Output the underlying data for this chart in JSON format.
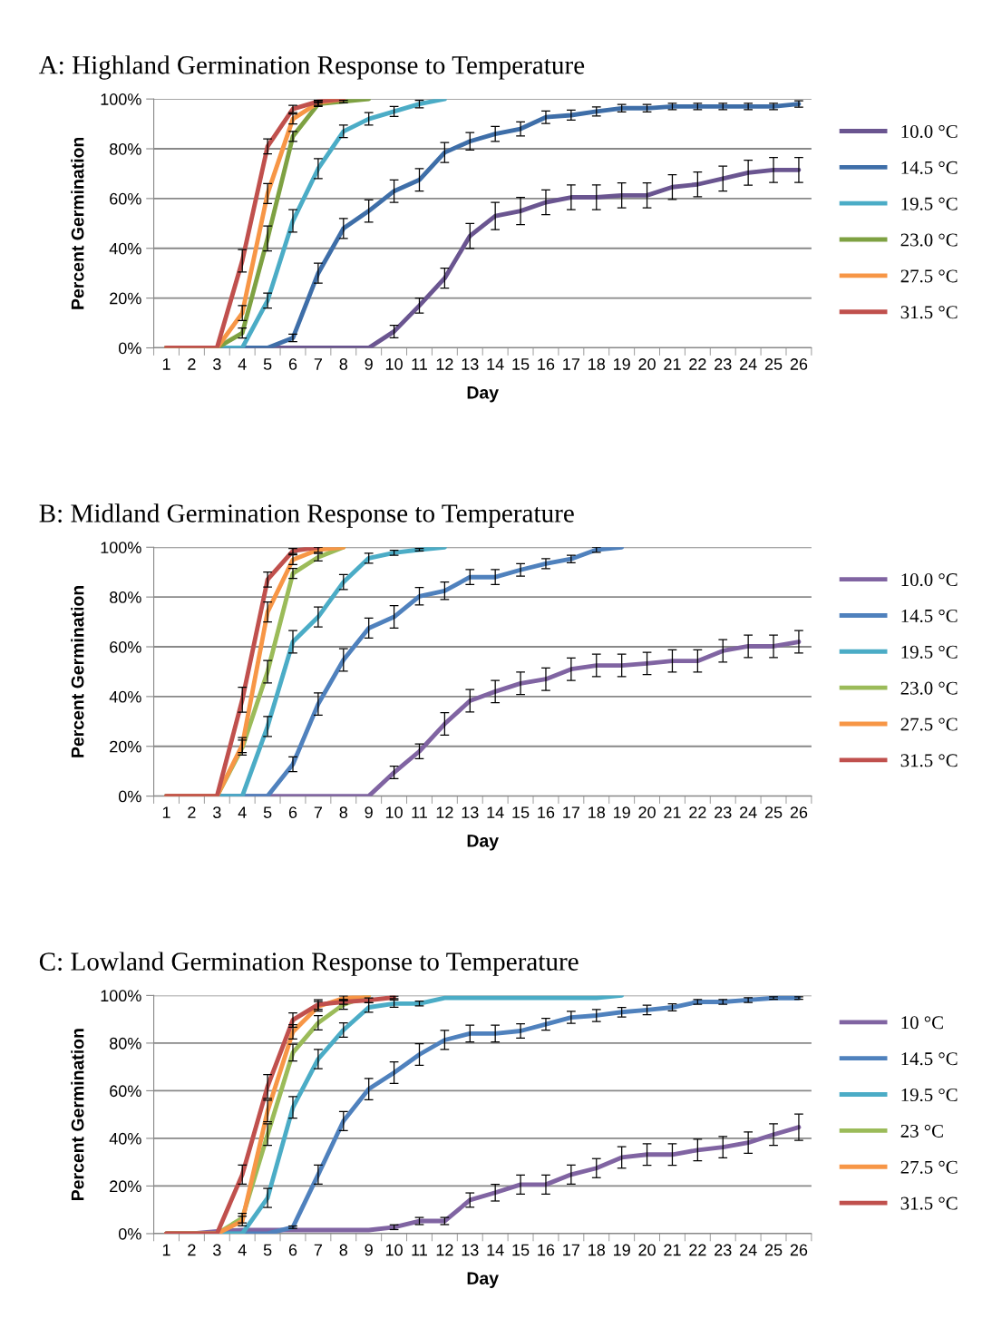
{
  "chart_data": [
    {
      "type": "line",
      "title": "A: Highland Germination Response to Temperature",
      "xlabel": "Day",
      "ylabel": "Percent Germination",
      "categories": [
        "1",
        "2",
        "3",
        "4",
        "5",
        "6",
        "7",
        "8",
        "9",
        "10",
        "11",
        "12",
        "13",
        "14",
        "15",
        "16",
        "17",
        "18",
        "19",
        "20",
        "21",
        "22",
        "23",
        "24",
        "25",
        "26"
      ],
      "ylim": [
        0,
        100
      ],
      "yticks": [
        {
          "value": 0,
          "label": "0%"
        },
        {
          "value": 20,
          "label": "20%"
        },
        {
          "value": 40,
          "label": "40%"
        },
        {
          "value": 60,
          "label": "60%"
        },
        {
          "value": 80,
          "label": "80%"
        },
        {
          "value": 100,
          "label": "100%"
        }
      ],
      "grid": "y",
      "legend": "right",
      "marker": "none",
      "line_style": "solid",
      "series": [
        {
          "name": "10.0 °C",
          "color": "#6a5590",
          "values": [
            0,
            0,
            0,
            0,
            0,
            0,
            0,
            0,
            0,
            6.6,
            17,
            28,
            45,
            53,
            55,
            58.5,
            60.5,
            60.5,
            61.3,
            61.3,
            64.6,
            65.7,
            68,
            70.4,
            71.5,
            71.5
          ],
          "errors": [
            null,
            null,
            null,
            null,
            null,
            null,
            null,
            null,
            null,
            2.5,
            3,
            4,
            5,
            5.5,
            5.5,
            5,
            5,
            5,
            5,
            5,
            5,
            5,
            5,
            5,
            5,
            5
          ]
        },
        {
          "name": "14.5 °C",
          "color": "#3e6ea8",
          "values": [
            0,
            0,
            0,
            0,
            0,
            4,
            30,
            48,
            55,
            63,
            67.5,
            78.5,
            83,
            86,
            88,
            92.7,
            93.5,
            95,
            96.3,
            96.3,
            97,
            97,
            97,
            97,
            97,
            98
          ],
          "errors": [
            null,
            null,
            null,
            null,
            null,
            1.5,
            4,
            4,
            4.5,
            4.5,
            4.5,
            4,
            3.5,
            3,
            2.8,
            2.5,
            2,
            1.8,
            1.5,
            1.5,
            1.3,
            1.3,
            1.3,
            1.3,
            1.3,
            1.3
          ]
        },
        {
          "name": "19.5 °C",
          "color": "#4bacc6",
          "values": [
            0,
            0,
            0,
            0,
            19,
            51,
            72,
            87,
            92,
            95,
            98,
            100,
            null,
            null,
            null,
            null,
            null,
            null,
            null,
            null,
            null,
            null,
            null,
            null,
            null,
            null
          ],
          "errors": [
            null,
            null,
            null,
            null,
            3,
            4.5,
            4,
            2.5,
            2.5,
            2,
            1.5,
            null,
            null,
            null,
            null,
            null,
            null,
            null,
            null,
            null,
            null,
            null,
            null,
            null,
            null,
            null
          ]
        },
        {
          "name": "23.0 °C",
          "color": "#7ea142",
          "values": [
            0,
            0,
            0,
            6,
            44,
            85,
            98,
            99,
            100,
            null,
            null,
            null,
            null,
            null,
            null,
            null,
            null,
            null,
            null,
            null,
            null,
            null,
            null,
            null,
            null,
            null
          ],
          "errors": [
            null,
            null,
            null,
            2,
            5,
            2,
            1,
            0.5,
            null,
            null,
            null,
            null,
            null,
            null,
            null,
            null,
            null,
            null,
            null,
            null,
            null,
            null,
            null,
            null,
            null,
            null
          ]
        },
        {
          "name": "27.5 °C",
          "color": "#f79646",
          "values": [
            0,
            0,
            0,
            14,
            62,
            92,
            98.5,
            100,
            null,
            null,
            null,
            null,
            null,
            null,
            null,
            null,
            null,
            null,
            null,
            null,
            null,
            null,
            null,
            null,
            null,
            null
          ],
          "errors": [
            null,
            null,
            null,
            3,
            4,
            2,
            1,
            null,
            null,
            null,
            null,
            null,
            null,
            null,
            null,
            null,
            null,
            null,
            null,
            null,
            null,
            null,
            null,
            null,
            null,
            null
          ]
        },
        {
          "name": "31.5 °C",
          "color": "#c0504d",
          "values": [
            0,
            0,
            0,
            35,
            81,
            96,
            99,
            100,
            null,
            null,
            null,
            null,
            null,
            null,
            null,
            null,
            null,
            null,
            null,
            null,
            null,
            null,
            null,
            null,
            null,
            null
          ],
          "errors": [
            null,
            null,
            null,
            4.5,
            3,
            1.5,
            0.5,
            null,
            null,
            null,
            null,
            null,
            null,
            null,
            null,
            null,
            null,
            null,
            null,
            null,
            null,
            null,
            null,
            null,
            null,
            null
          ]
        }
      ]
    },
    {
      "type": "line",
      "title": "B: Midland Germination Response to Temperature",
      "xlabel": "Day",
      "ylabel": "Percent Germination",
      "categories": [
        "1",
        "2",
        "3",
        "4",
        "5",
        "6",
        "7",
        "8",
        "9",
        "10",
        "11",
        "12",
        "13",
        "14",
        "15",
        "16",
        "17",
        "18",
        "19",
        "20",
        "21",
        "22",
        "23",
        "24",
        "25",
        "26"
      ],
      "ylim": [
        0,
        100
      ],
      "yticks": [
        {
          "value": 0,
          "label": "0%"
        },
        {
          "value": 20,
          "label": "20%"
        },
        {
          "value": 40,
          "label": "40%"
        },
        {
          "value": 60,
          "label": "60%"
        },
        {
          "value": 80,
          "label": "80%"
        },
        {
          "value": 100,
          "label": "100%"
        }
      ],
      "grid": "y",
      "legend": "right",
      "marker": "none",
      "line_style": "solid",
      "series": [
        {
          "name": "10.0 °C",
          "color": "#8064a2",
          "values": [
            0,
            0,
            0,
            0,
            0,
            0,
            0,
            0,
            0,
            9.5,
            18,
            29,
            38.3,
            42,
            45.3,
            47,
            51,
            52.5,
            52.5,
            53.3,
            54.3,
            54.3,
            58.4,
            60.2,
            60.2,
            62
          ],
          "errors": [
            null,
            null,
            null,
            null,
            null,
            null,
            null,
            null,
            null,
            2.5,
            3,
            4.5,
            4.5,
            4.5,
            4.5,
            4.5,
            4.5,
            4.5,
            4.5,
            4.5,
            4.5,
            4.5,
            4.5,
            4.5,
            4.5,
            4.5
          ]
        },
        {
          "name": "14.5 °C",
          "color": "#4f81bd",
          "values": [
            0,
            0,
            0,
            0,
            0,
            12.8,
            37,
            54.7,
            67.5,
            72,
            80.3,
            82.5,
            88,
            88,
            90.9,
            93.4,
            95.3,
            99,
            100,
            null,
            null,
            null,
            null,
            null,
            null,
            null
          ],
          "errors": [
            null,
            null,
            null,
            null,
            null,
            3,
            4.5,
            4.5,
            4,
            4.5,
            3.5,
            3.5,
            3,
            3,
            2.5,
            2,
            1.5,
            1,
            null,
            null,
            null,
            null,
            null,
            null,
            null,
            null
          ]
        },
        {
          "name": "19.5 °C",
          "color": "#4bacc6",
          "values": [
            0,
            0,
            0,
            0,
            28,
            62,
            72,
            86,
            95.6,
            97.8,
            99,
            100,
            null,
            null,
            null,
            null,
            null,
            null,
            null,
            null,
            null,
            null,
            null,
            null,
            null,
            null
          ],
          "errors": [
            null,
            null,
            null,
            null,
            4,
            4.5,
            4,
            3,
            2,
            1,
            0.5,
            null,
            null,
            null,
            null,
            null,
            null,
            null,
            null,
            null,
            null,
            null,
            null,
            null,
            null,
            null
          ]
        },
        {
          "name": "23.0 °C",
          "color": "#9bbb59",
          "values": [
            0,
            0,
            0,
            19.5,
            50,
            89.5,
            96,
            100,
            null,
            null,
            null,
            null,
            null,
            null,
            null,
            null,
            null,
            null,
            null,
            null,
            null,
            null,
            null,
            null,
            null,
            null
          ],
          "errors": [
            null,
            null,
            null,
            3,
            4.5,
            2,
            1.5,
            null,
            null,
            null,
            null,
            null,
            null,
            null,
            null,
            null,
            null,
            null,
            null,
            null,
            null,
            null,
            null,
            null,
            null,
            null
          ]
        },
        {
          "name": "27.5 °C",
          "color": "#f79646",
          "values": [
            0,
            0,
            0,
            20.5,
            74,
            95,
            99,
            100,
            null,
            null,
            null,
            null,
            null,
            null,
            null,
            null,
            null,
            null,
            null,
            null,
            null,
            null,
            null,
            null,
            null,
            null
          ],
          "errors": [
            null,
            null,
            null,
            3,
            4,
            2,
            1,
            null,
            null,
            null,
            null,
            null,
            null,
            null,
            null,
            null,
            null,
            null,
            null,
            null,
            null,
            null,
            null,
            null,
            null,
            null
          ]
        },
        {
          "name": "31.5 °C",
          "color": "#c0504d",
          "values": [
            0,
            0,
            0,
            38.7,
            87,
            98.5,
            100,
            null,
            null,
            null,
            null,
            null,
            null,
            null,
            null,
            null,
            null,
            null,
            null,
            null,
            null,
            null,
            null,
            null,
            null,
            null
          ],
          "errors": [
            null,
            null,
            null,
            5,
            3,
            1,
            null,
            null,
            null,
            null,
            null,
            null,
            null,
            null,
            null,
            null,
            null,
            null,
            null,
            null,
            null,
            null,
            null,
            null,
            null,
            null
          ]
        }
      ]
    },
    {
      "type": "line",
      "title": "C: Lowland Germination Response to Temperature",
      "xlabel": "Day",
      "ylabel": "Percent Germination",
      "categories": [
        "1",
        "2",
        "3",
        "4",
        "5",
        "6",
        "7",
        "8",
        "9",
        "10",
        "11",
        "12",
        "13",
        "14",
        "15",
        "16",
        "17",
        "18",
        "19",
        "20",
        "21",
        "22",
        "23",
        "24",
        "25",
        "26"
      ],
      "ylim": [
        0,
        100
      ],
      "yticks": [
        {
          "value": 0,
          "label": "0%"
        },
        {
          "value": 20,
          "label": "20%"
        },
        {
          "value": 40,
          "label": "40%"
        },
        {
          "value": 60,
          "label": "60%"
        },
        {
          "value": 80,
          "label": "80%"
        },
        {
          "value": 100,
          "label": "100%"
        }
      ],
      "grid": "y",
      "legend": "right",
      "marker": "none",
      "line_style": "solid",
      "series": [
        {
          "name": "10 °C",
          "color": "#8064a2",
          "values": [
            0,
            0,
            1,
            1.5,
            1.5,
            1.5,
            1.5,
            1.5,
            1.5,
            2.7,
            5.3,
            5.3,
            14.1,
            17.2,
            20.6,
            20.6,
            24.8,
            27.5,
            32,
            33.2,
            33.2,
            35.1,
            36.3,
            38.2,
            41.6,
            44.7
          ],
          "errors": [
            null,
            null,
            null,
            null,
            null,
            null,
            null,
            null,
            null,
            1,
            1.5,
            1.5,
            3,
            3.5,
            4,
            4,
            4,
            4,
            4.5,
            4.5,
            4.5,
            4.5,
            4.5,
            4.5,
            4.5,
            5.5
          ]
        },
        {
          "name": "14.5 °C",
          "color": "#4f81bd",
          "values": [
            0,
            0,
            0,
            0,
            0,
            2.7,
            24.8,
            47.3,
            60.7,
            67.6,
            75.2,
            81.3,
            84,
            84,
            85.1,
            87.9,
            90.8,
            91.6,
            93,
            93.9,
            95,
            97.3,
            97.3,
            98.1,
            98.9,
            98.9
          ],
          "errors": [
            null,
            null,
            null,
            null,
            null,
            0.5,
            4,
            4,
            4.5,
            4.5,
            4.5,
            4,
            3.5,
            3.5,
            3,
            2.5,
            2.5,
            2.5,
            2,
            2,
            1.5,
            1,
            1,
            1,
            0.5,
            0.5
          ]
        },
        {
          "name": "19.5 °C",
          "color": "#4bacc6",
          "values": [
            0,
            0,
            0,
            0,
            15,
            53,
            73.3,
            85.5,
            95,
            96.6,
            96.6,
            99,
            99,
            99,
            99,
            99,
            99,
            99,
            100,
            null,
            null,
            null,
            null,
            null,
            null,
            null
          ],
          "errors": [
            null,
            null,
            null,
            null,
            4,
            4.5,
            4,
            3,
            2,
            1.5,
            1,
            null,
            null,
            null,
            null,
            null,
            null,
            null,
            null,
            null,
            null,
            null,
            null,
            null,
            null,
            null
          ]
        },
        {
          "name": "23 °C",
          "color": "#9bbb59",
          "values": [
            0,
            0,
            0,
            6.5,
            41.6,
            76,
            88.5,
            96.2,
            100,
            null,
            null,
            null,
            null,
            null,
            null,
            null,
            null,
            null,
            null,
            null,
            null,
            null,
            null,
            null,
            null,
            null
          ],
          "errors": [
            null,
            null,
            null,
            2,
            4.5,
            3.5,
            3,
            2,
            null,
            null,
            null,
            null,
            null,
            null,
            null,
            null,
            null,
            null,
            null,
            null,
            null,
            null,
            null,
            null,
            null,
            null
          ]
        },
        {
          "name": "27.5 °C",
          "color": "#f79646",
          "values": [
            0,
            0,
            0,
            5.3,
            51.5,
            84.7,
            95.4,
            98.8,
            100,
            null,
            null,
            null,
            null,
            null,
            null,
            null,
            null,
            null,
            null,
            null,
            null,
            null,
            null,
            null,
            null,
            null
          ],
          "errors": [
            null,
            null,
            null,
            2,
            4.5,
            3,
            2,
            1,
            null,
            null,
            null,
            null,
            null,
            null,
            null,
            null,
            null,
            null,
            null,
            null,
            null,
            null,
            null,
            null,
            null,
            null
          ]
        },
        {
          "name": "31.5 °C",
          "color": "#c0504d",
          "values": [
            0,
            0,
            0,
            24.8,
            61.8,
            89.7,
            96.2,
            97.3,
            98,
            99.2,
            null,
            null,
            null,
            null,
            null,
            null,
            null,
            null,
            null,
            null,
            null,
            null,
            null,
            null,
            null,
            null
          ],
          "errors": [
            null,
            null,
            null,
            4,
            5,
            3,
            2,
            1,
            1,
            0.5,
            null,
            null,
            null,
            null,
            null,
            null,
            null,
            null,
            null,
            null,
            null,
            null,
            null,
            null,
            null,
            null
          ]
        }
      ]
    }
  ]
}
